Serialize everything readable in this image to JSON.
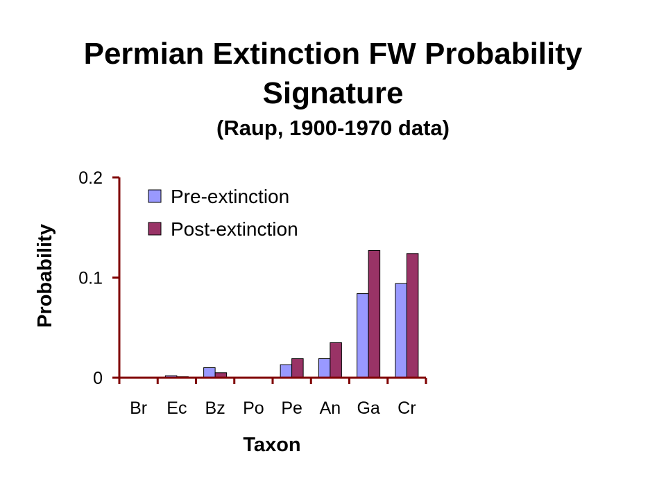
{
  "chart_data": {
    "type": "bar",
    "title_line1": "Permian Extinction FW Probability",
    "title_line2": "Signature",
    "subtitle": "(Raup, 1900-1970 data)",
    "xlabel": "Taxon",
    "ylabel": "Probability",
    "categories": [
      "Br",
      "Ec",
      "Bz",
      "Po",
      "Pe",
      "An",
      "Ga",
      "Cr"
    ],
    "series": [
      {
        "name": "Pre-extinction",
        "color": "#9999ff",
        "values": [
          0,
          0.002,
          0.01,
          0,
          0.013,
          0.019,
          0.084,
          0.094
        ]
      },
      {
        "name": "Post-extinction",
        "color": "#993366",
        "values": [
          0,
          0.001,
          0.005,
          0,
          0.019,
          0.035,
          0.127,
          0.124
        ]
      }
    ],
    "yticks": [
      {
        "value": 0,
        "label": "0"
      },
      {
        "value": 0.1,
        "label": "0.1"
      },
      {
        "value": 0.2,
        "label": "0.2"
      }
    ],
    "ylim": [
      0,
      0.2
    ],
    "legend_position": "top-left",
    "axis_color": "#800000",
    "grid": false
  }
}
